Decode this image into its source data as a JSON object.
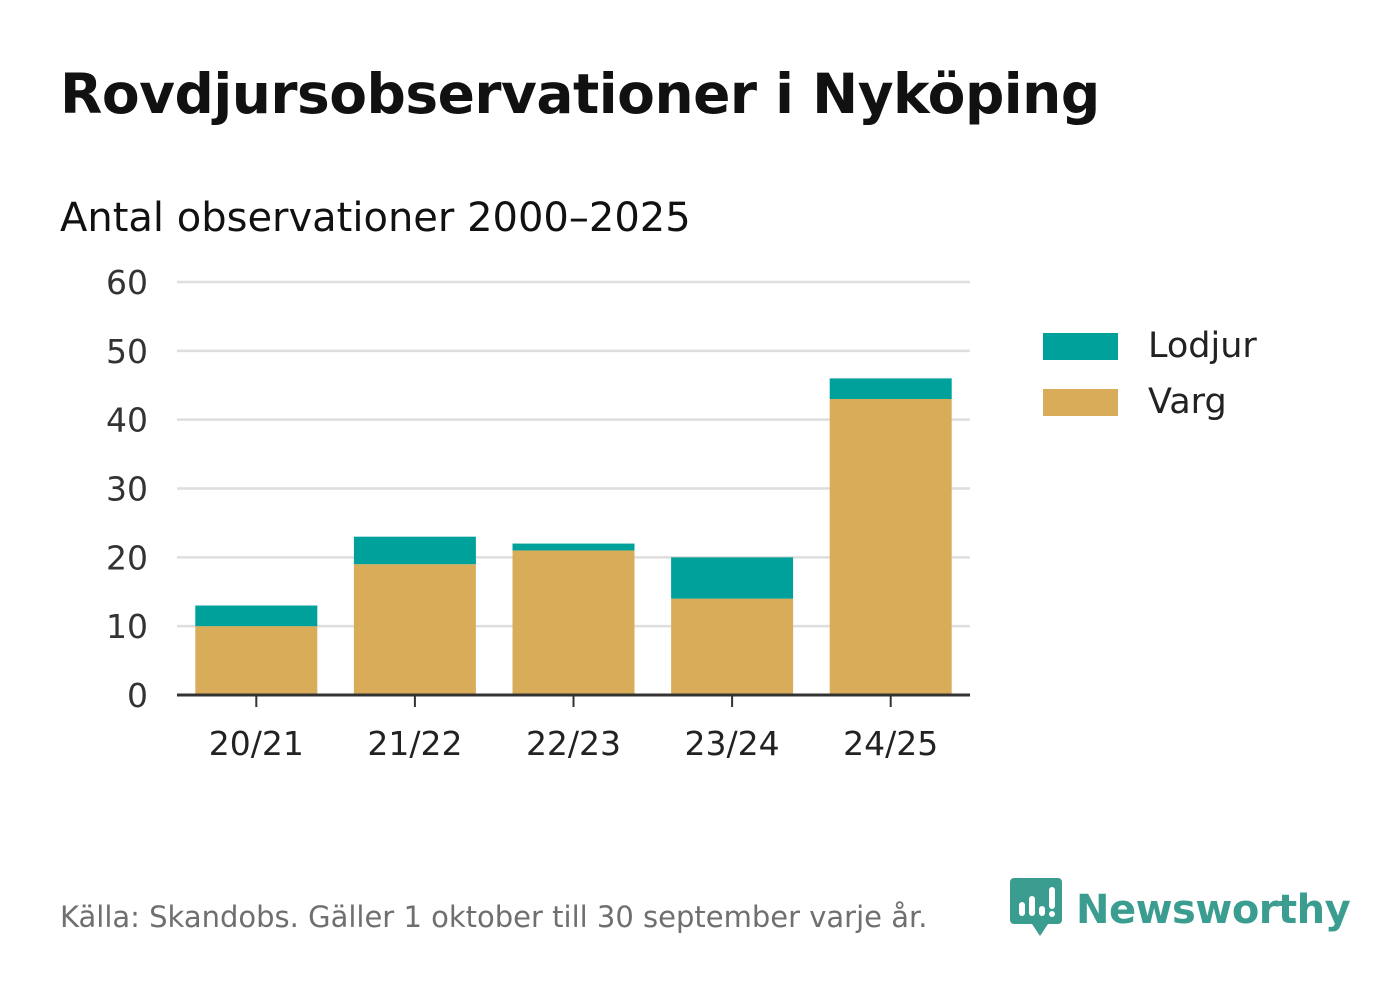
{
  "title": "Rovdjursobservationer i Nyköping",
  "subtitle": "Antal observationer 2000–2025",
  "source": "Källa: Skandobs. Gäller 1 oktober till 30 september varje år.",
  "brand": {
    "name": "Newsworthy",
    "icon": "newsworthy-logo-icon",
    "color": "#3b9c90"
  },
  "legend": [
    {
      "name": "Lodjur",
      "color": "#00a19a"
    },
    {
      "name": "Varg",
      "color": "#d9ac5a"
    }
  ],
  "chart_data": {
    "type": "bar",
    "stacked": true,
    "title": "Rovdjursobservationer i Nyköping",
    "subtitle": "Antal observationer 2000–2025",
    "xlabel": "",
    "ylabel": "",
    "categories": [
      "20/21",
      "21/22",
      "22/23",
      "23/24",
      "24/25"
    ],
    "series": [
      {
        "name": "Varg",
        "color": "#d9ac5a",
        "values": [
          10,
          19,
          21,
          14,
          43
        ]
      },
      {
        "name": "Lodjur",
        "color": "#00a19a",
        "values": [
          3,
          4,
          1,
          6,
          3
        ]
      }
    ],
    "ylim": [
      0,
      60
    ],
    "yticks": [
      0,
      10,
      20,
      30,
      40,
      50,
      60
    ],
    "grid": true,
    "legend_position": "right"
  }
}
